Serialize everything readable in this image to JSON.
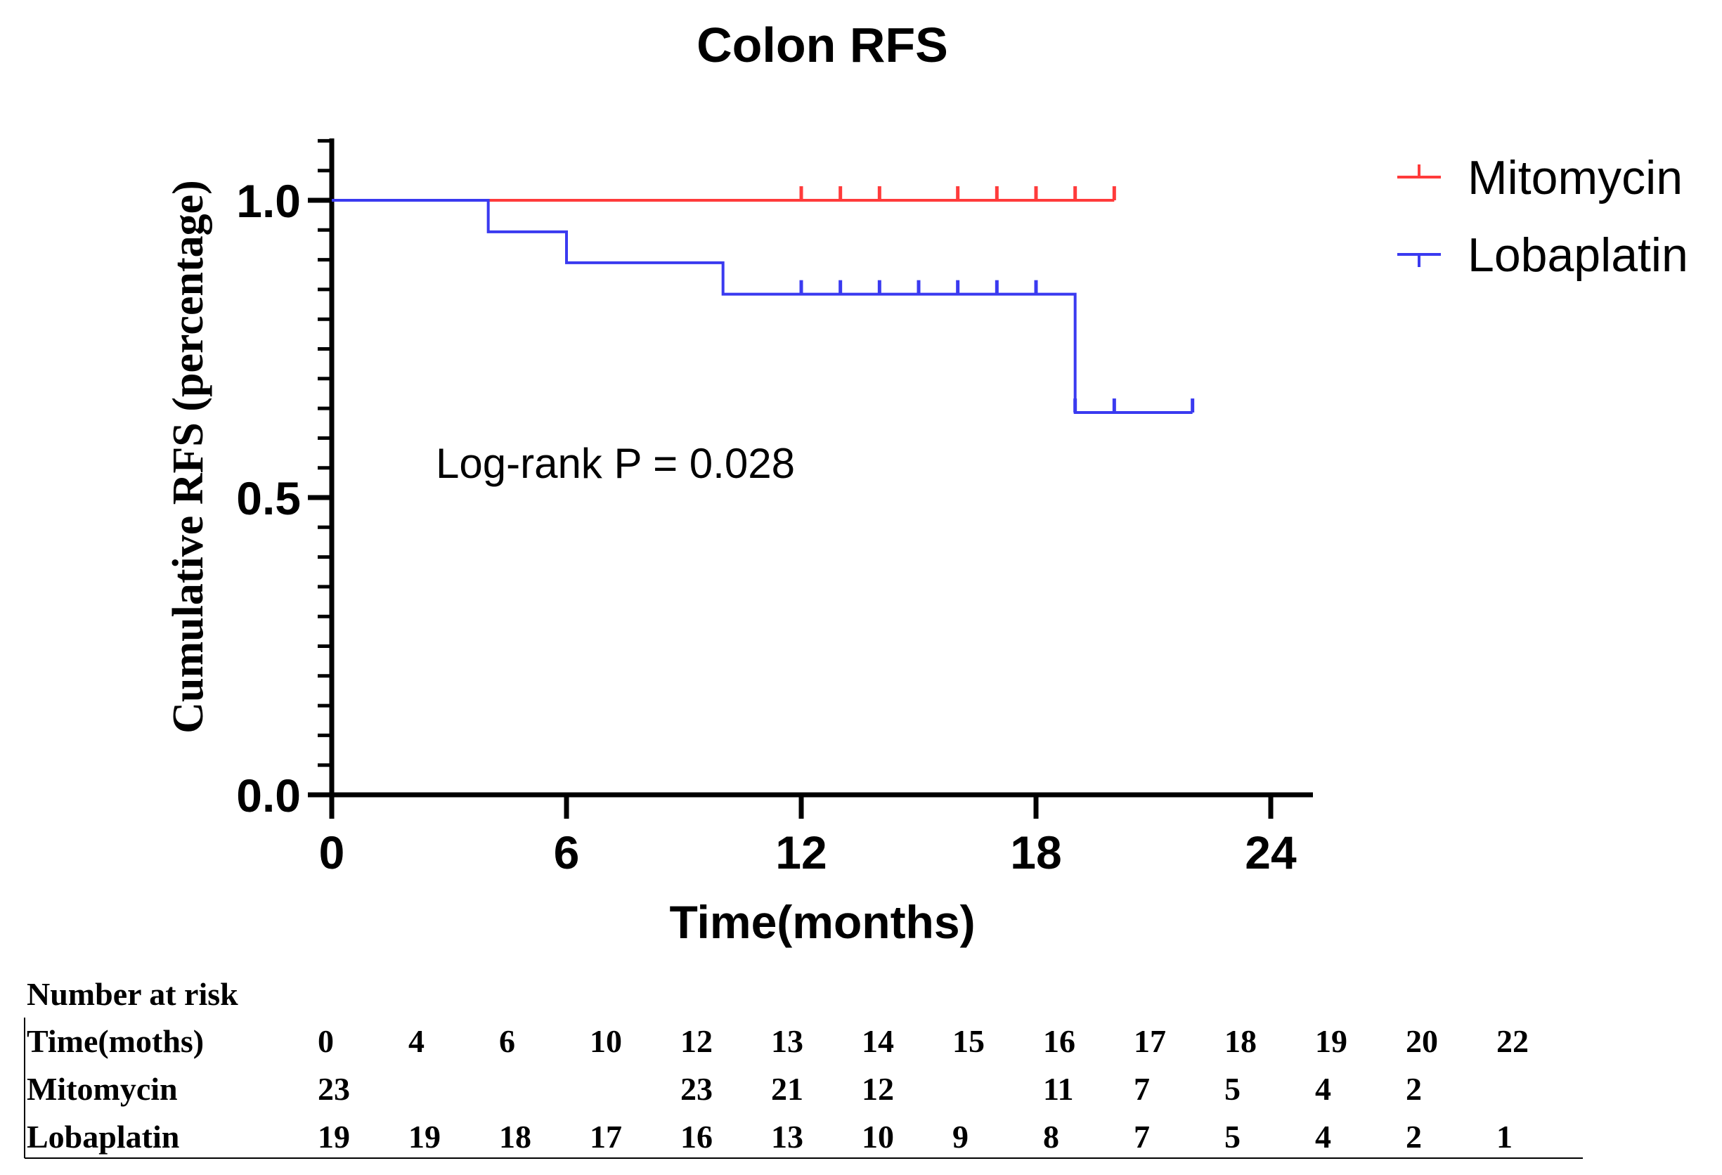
{
  "chart_data": {
    "type": "line",
    "subtype": "kaplan-meier-step",
    "title": "Colon RFS",
    "xlabel": "Time(months)",
    "ylabel": "Cumulative RFS (percentage)",
    "xlim": [
      0,
      25
    ],
    "ylim": [
      0,
      1.1
    ],
    "x_ticks": [
      0,
      6,
      12,
      18,
      24
    ],
    "y_ticks": [
      0.0,
      0.5,
      1.0
    ],
    "x_tick_labels": [
      "0",
      "6",
      "12",
      "18",
      "24"
    ],
    "y_tick_labels": [
      "0.0",
      "0.5",
      "1.0"
    ],
    "y_minor_step": 0.05,
    "legend_position": "top-right",
    "annotation": "Log-rank P = 0.028",
    "series": [
      {
        "name": "Mitomycin",
        "color": "#ff3b3b",
        "steps": [
          [
            0,
            1.0
          ],
          [
            20,
            1.0
          ]
        ],
        "censor_times": [
          12,
          13,
          14,
          16,
          17,
          18,
          19,
          20
        ]
      },
      {
        "name": "Lobaplatin",
        "color": "#3a3af0",
        "steps": [
          [
            0,
            1.0
          ],
          [
            4,
            0.947
          ],
          [
            6,
            0.895
          ],
          [
            10,
            0.842
          ],
          [
            19,
            0.643
          ],
          [
            22,
            0.643
          ]
        ],
        "censor_times": [
          12,
          13,
          14,
          15,
          16,
          17,
          18,
          19,
          20,
          22
        ]
      }
    ],
    "risk_table": {
      "title": "Number at risk",
      "header": "Time(moths)",
      "times": [
        "0",
        "4",
        "6",
        "10",
        "12",
        "13",
        "14",
        "15",
        "16",
        "17",
        "18",
        "19",
        "20",
        "22"
      ],
      "rows": [
        {
          "label": "Mitomycin",
          "values": [
            "23",
            "",
            "",
            "",
            "23",
            "21",
            "12",
            "",
            "11",
            "7",
            "5",
            "4",
            "2",
            ""
          ]
        },
        {
          "label": "Lobaplatin",
          "values": [
            "19",
            "19",
            "18",
            "17",
            "16",
            "13",
            "10",
            "9",
            "8",
            "7",
            "5",
            "4",
            "2",
            "1"
          ]
        }
      ]
    }
  }
}
